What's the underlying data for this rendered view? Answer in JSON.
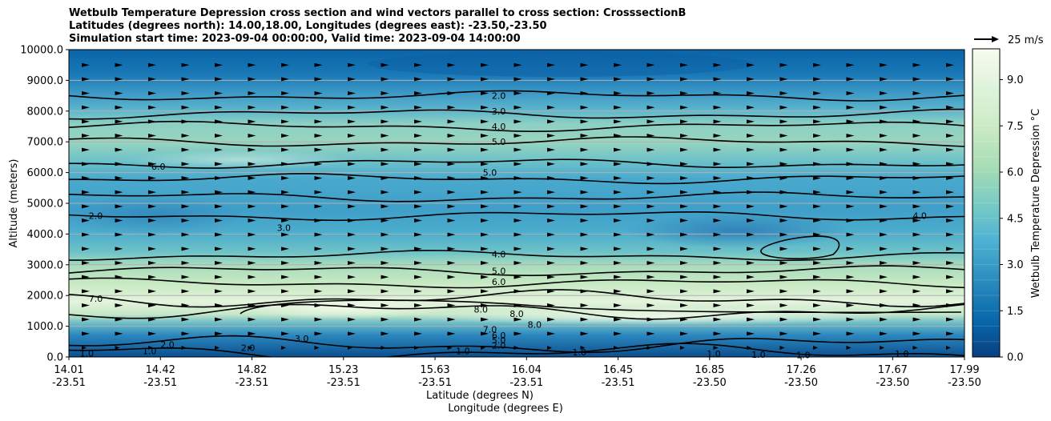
{
  "chart_data": {
    "type": "contour",
    "title_lines": [
      "Wetbulb Temperature Depression cross section and wind vectors parallel to cross section: CrosssectionB",
      "Latitudes (degrees north): 14.00,18.00, Longitudes (degrees east): -23.50,-23.50",
      "Simulation start time: 2023-09-04 00:00:00, Valid time: 2023-09-04 14:00:00"
    ],
    "ylabel": "Altitude (meters)",
    "xlabel_lat": "Latitude (degrees N)",
    "xlabel_lon": "Longitude (degrees E)",
    "ylim": [
      0,
      10000
    ],
    "y_ticks": [
      "0.0",
      "1000.0",
      "2000.0",
      "3000.0",
      "4000.0",
      "5000.0",
      "6000.0",
      "7000.0",
      "8000.0",
      "9000.0",
      "10000.0"
    ],
    "x_ticks": [
      {
        "lat": "14.01",
        "lon": "-23.51"
      },
      {
        "lat": "14.42",
        "lon": "-23.51"
      },
      {
        "lat": "14.82",
        "lon": "-23.51"
      },
      {
        "lat": "15.23",
        "lon": "-23.51"
      },
      {
        "lat": "15.63",
        "lon": "-23.51"
      },
      {
        "lat": "16.04",
        "lon": "-23.51"
      },
      {
        "lat": "16.45",
        "lon": "-23.51"
      },
      {
        "lat": "16.85",
        "lon": "-23.50"
      },
      {
        "lat": "17.26",
        "lon": "-23.50"
      },
      {
        "lat": "17.67",
        "lon": "-23.50"
      },
      {
        "lat": "17.99",
        "lon": "-23.50"
      }
    ],
    "colorbar": {
      "label": "Wetbulb Temperature Depression $^\\circ$C",
      "label_display": "Wetbulb Temperature Depression °C",
      "range": [
        0,
        10
      ],
      "ticks": [
        "0.0",
        "1.5",
        "3.0",
        "4.5",
        "6.0",
        "7.5",
        "9.0"
      ],
      "levels": 20
    },
    "wind_key": {
      "label": "25 m/s"
    },
    "contour_line_levels": [
      {
        "level": 2.0,
        "alt": 8500
      },
      {
        "level": 3.0,
        "alt": 7900
      },
      {
        "level": 4.0,
        "alt": 7500
      },
      {
        "level": 5.0,
        "alt": 7000
      },
      {
        "level": 6.0,
        "alt": 6300
      },
      {
        "level": 5.0,
        "alt": 5800
      },
      {
        "level": 4.0,
        "alt": 5200
      },
      {
        "level": 3.0,
        "alt": 4600
      },
      {
        "level": 4.0,
        "alt": 3300
      },
      {
        "level": 5.0,
        "alt": 2800
      },
      {
        "level": 6.0,
        "alt": 2400
      },
      {
        "level": 7.0,
        "alt": 1900
      },
      {
        "level": 8.0,
        "alt": 1500
      },
      {
        "level": 2.0,
        "alt": 400
      },
      {
        "level": 1.0,
        "alt": 150
      }
    ],
    "contour_labels": [
      {
        "text": "2.0",
        "x": 0.48,
        "alt": 8500
      },
      {
        "text": "3.0",
        "x": 0.48,
        "alt": 8000
      },
      {
        "text": "4.0",
        "x": 0.48,
        "alt": 7500
      },
      {
        "text": "5.0",
        "x": 0.48,
        "alt": 7000
      },
      {
        "text": "5.0",
        "x": 0.47,
        "alt": 6000
      },
      {
        "text": "6.0",
        "x": 0.1,
        "alt": 6200
      },
      {
        "text": "2.0",
        "x": 0.03,
        "alt": 4600
      },
      {
        "text": "3.0",
        "x": 0.24,
        "alt": 4200
      },
      {
        "text": "4.0",
        "x": 0.95,
        "alt": 4600
      },
      {
        "text": "4.0",
        "x": 0.48,
        "alt": 3350
      },
      {
        "text": "5.0",
        "x": 0.48,
        "alt": 2800
      },
      {
        "text": "6.0",
        "x": 0.48,
        "alt": 2450
      },
      {
        "text": "7.0",
        "x": 0.03,
        "alt": 1900
      },
      {
        "text": "8.0",
        "x": 0.46,
        "alt": 1550
      },
      {
        "text": "8.0",
        "x": 0.5,
        "alt": 1400
      },
      {
        "text": "8.0",
        "x": 0.52,
        "alt": 1050
      },
      {
        "text": "7.0",
        "x": 0.47,
        "alt": 900
      },
      {
        "text": "6.0",
        "x": 0.48,
        "alt": 700
      },
      {
        "text": "5.0",
        "x": 0.48,
        "alt": 550
      },
      {
        "text": "2.0",
        "x": 0.48,
        "alt": 380
      },
      {
        "text": "2.0",
        "x": 0.11,
        "alt": 400
      },
      {
        "text": "2.0",
        "x": 0.2,
        "alt": 300
      },
      {
        "text": "3.0",
        "x": 0.26,
        "alt": 600
      },
      {
        "text": "1.0",
        "x": 0.02,
        "alt": 120
      },
      {
        "text": "1.0",
        "x": 0.09,
        "alt": 200
      },
      {
        "text": "1.0",
        "x": 0.44,
        "alt": 200
      },
      {
        "text": "1.0",
        "x": 0.57,
        "alt": 150
      },
      {
        "text": "1.0",
        "x": 0.72,
        "alt": 100
      },
      {
        "text": "1.0",
        "x": 0.77,
        "alt": 80
      },
      {
        "text": "1.0",
        "x": 0.82,
        "alt": 60
      },
      {
        "text": "1.0",
        "x": 0.93,
        "alt": 100
      }
    ]
  }
}
